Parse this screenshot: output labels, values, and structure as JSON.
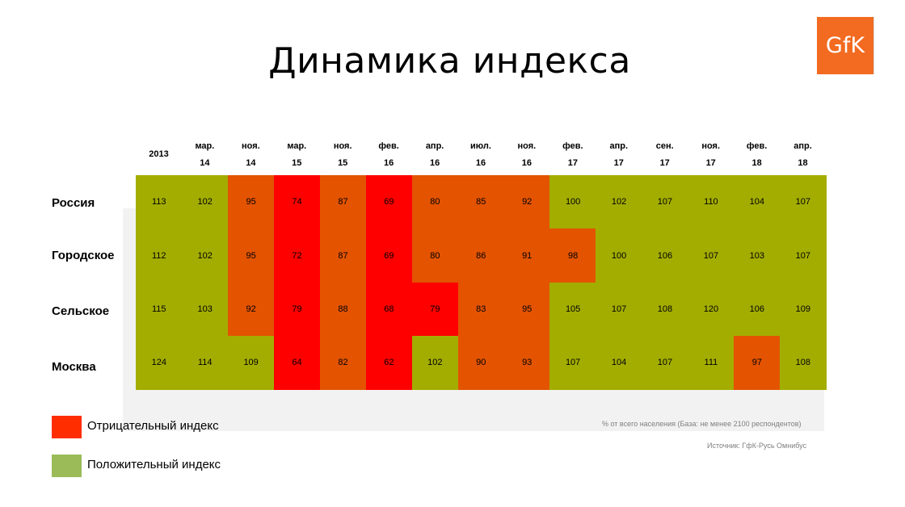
{
  "title": "Динамика индекса",
  "logo": "GfK",
  "chart_data": {
    "type": "heatmap",
    "columns": [
      {
        "top": "",
        "bottom": "2013"
      },
      {
        "top": "мар.",
        "bottom": "14"
      },
      {
        "top": "ноя.",
        "bottom": "14"
      },
      {
        "top": "мар.",
        "bottom": "15"
      },
      {
        "top": "ноя.",
        "bottom": "15"
      },
      {
        "top": "фев.",
        "bottom": "16"
      },
      {
        "top": "апр.",
        "bottom": "16"
      },
      {
        "top": "июл.",
        "bottom": "16"
      },
      {
        "top": "ноя.",
        "bottom": "16"
      },
      {
        "top": "фев.",
        "bottom": "17"
      },
      {
        "top": "апр.",
        "bottom": "17"
      },
      {
        "top": "сен.",
        "bottom": "17"
      },
      {
        "top": "ноя.",
        "bottom": "17"
      },
      {
        "top": "фев.",
        "bottom": "18"
      },
      {
        "top": "апр.",
        "bottom": "18"
      }
    ],
    "rows": [
      "Россия",
      "Городское",
      "Сельское",
      "Москва"
    ],
    "values": [
      [
        113,
        102,
        95,
        74,
        87,
        69,
        80,
        85,
        92,
        100,
        102,
        107,
        110,
        104,
        107
      ],
      [
        112,
        102,
        95,
        72,
        87,
        69,
        80,
        86,
        91,
        98,
        100,
        106,
        107,
        103,
        107
      ],
      [
        115,
        103,
        92,
        79,
        88,
        68,
        79,
        83,
        95,
        105,
        107,
        108,
        120,
        106,
        109
      ],
      [
        124,
        114,
        109,
        64,
        82,
        62,
        102,
        90,
        93,
        107,
        104,
        107,
        111,
        97,
        108
      ]
    ],
    "legend": [
      {
        "label": "Отрицательный индекс",
        "color": "#ff2d00"
      },
      {
        "label": "Положительный индекс",
        "color": "#9bbb59"
      }
    ],
    "cell_colors": {
      "strong_negative": "#ff0000",
      "negative": "#e35300",
      "positive": "#a3ad00"
    }
  },
  "footnotes": {
    "note": "% от всего населения (База: не менее 2100  респондентов)",
    "source": "Источник: ГфК-Русь Омнибус"
  }
}
